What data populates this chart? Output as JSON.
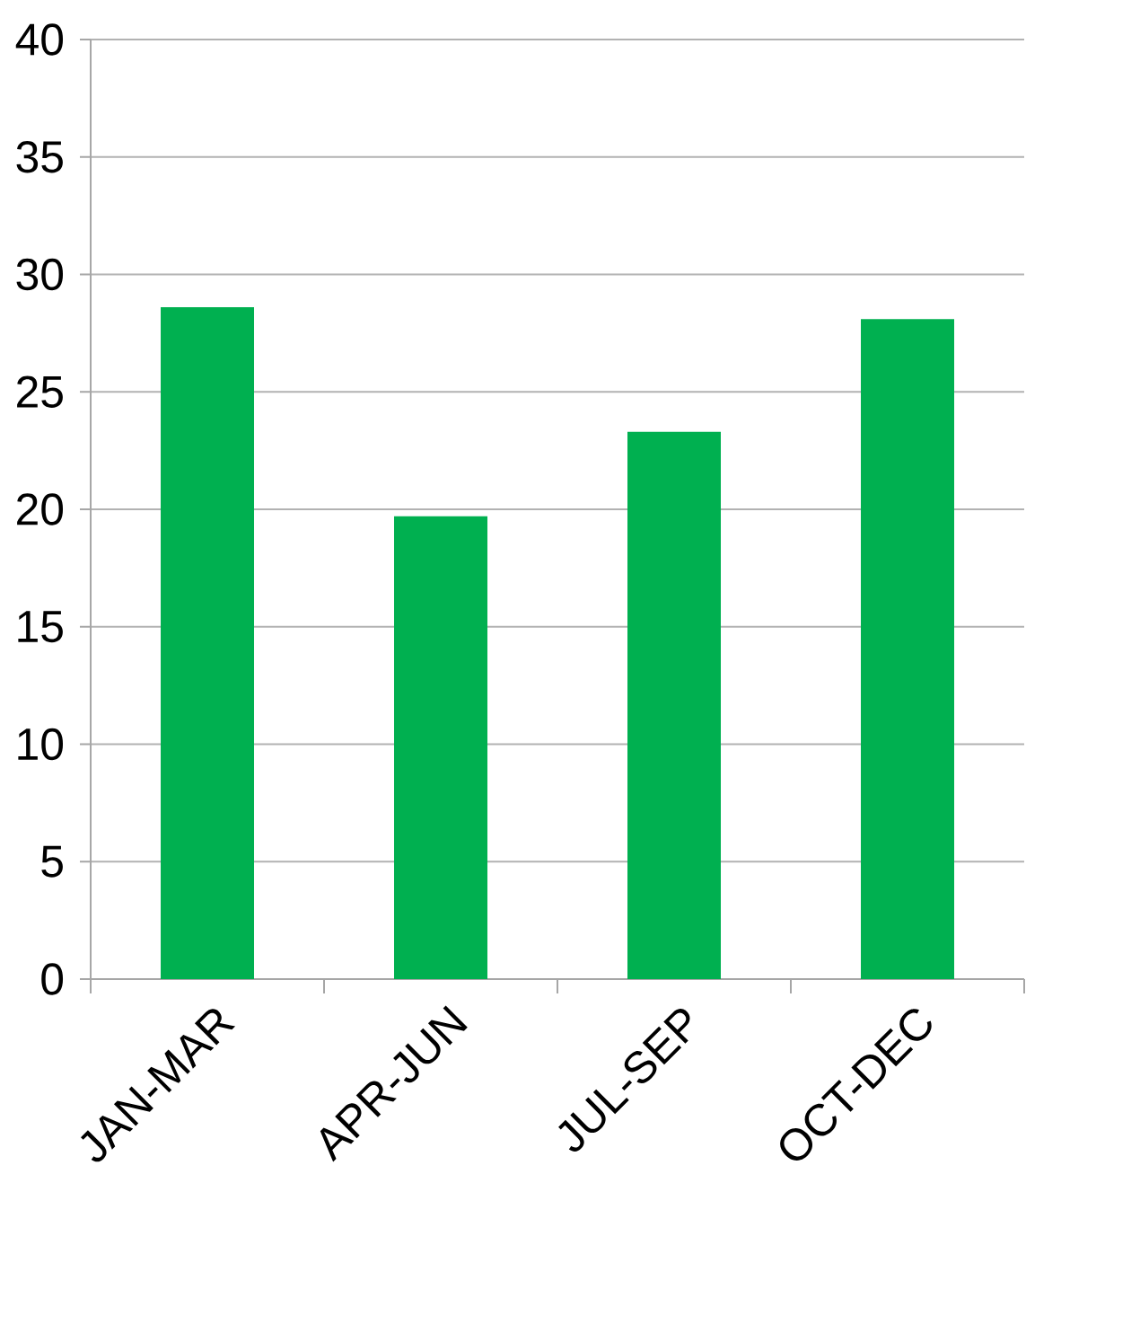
{
  "chart_data": {
    "type": "bar",
    "categories": [
      "JAN-MAR",
      "APR-JUN",
      "JUL-SEP",
      "OCT-DEC"
    ],
    "values": [
      28.6,
      19.7,
      23.3,
      28.1
    ],
    "color": "#00b050",
    "ylim": [
      0,
      40
    ],
    "yticks": [
      0,
      5,
      10,
      15,
      20,
      25,
      30,
      35,
      40
    ],
    "grid": "y"
  }
}
